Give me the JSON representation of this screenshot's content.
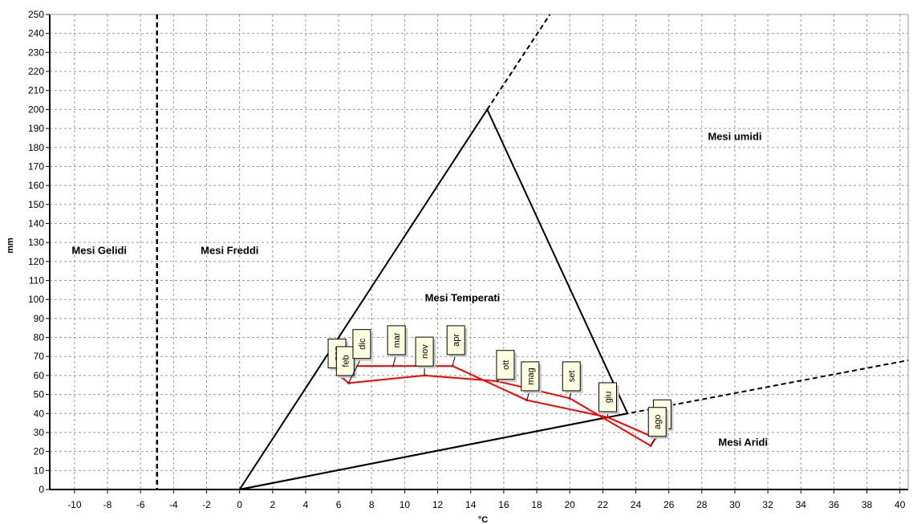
{
  "chart_data": {
    "type": "line",
    "title": "",
    "xlabel": "°C",
    "ylabel": "mm",
    "xlim": [
      -11.5,
      40.5
    ],
    "ylim": [
      0,
      250
    ],
    "x_ticks": [
      -10,
      -8,
      -6,
      -4,
      -2,
      0,
      2,
      4,
      6,
      8,
      10,
      12,
      14,
      16,
      18,
      20,
      22,
      24,
      26,
      28,
      30,
      32,
      34,
      36,
      38,
      40
    ],
    "y_ticks": [
      0,
      10,
      20,
      30,
      40,
      50,
      60,
      70,
      80,
      90,
      100,
      110,
      120,
      130,
      140,
      150,
      160,
      170,
      180,
      190,
      200,
      210,
      220,
      230,
      240,
      250
    ],
    "x_tick_labels": [
      "-10",
      "-8",
      "-6",
      "-4",
      "-2",
      "0",
      "2",
      "4",
      "6",
      "8",
      "10",
      "12",
      "14",
      "16",
      "18",
      "20",
      "22",
      "24",
      "26",
      "28",
      "30",
      "32",
      "34",
      "36",
      "38",
      "40"
    ],
    "y_tick_labels": [
      "0",
      "10",
      "20",
      "30",
      "40",
      "50",
      "60",
      "70",
      "80",
      "90",
      "100",
      "110",
      "120",
      "130",
      "140",
      "150",
      "160",
      "170",
      "180",
      "190",
      "200",
      "210",
      "220",
      "230",
      "240",
      "250"
    ],
    "grid": true,
    "frost_line_x": -5,
    "triangle": [
      [
        0,
        0
      ],
      [
        15,
        200
      ],
      [
        23.5,
        40
      ],
      [
        0,
        0
      ]
    ],
    "humid_line_extension": [
      [
        15,
        200
      ],
      [
        18.8,
        250
      ]
    ],
    "arid_line_extension": [
      [
        22.3,
        38
      ],
      [
        40.5,
        68
      ]
    ],
    "regions": [
      {
        "text": "Mesi Gelidi",
        "x": -8.5,
        "y": 124
      },
      {
        "text": "Mesi Freddi",
        "x": -0.6,
        "y": 124
      },
      {
        "text": "Mesi Temperati",
        "x": 13.5,
        "y": 99
      },
      {
        "text": "Mesi umidi",
        "x": 30,
        "y": 184
      },
      {
        "text": "Mesi Aridi",
        "x": 30.5,
        "y": 23
      }
    ],
    "series": [
      {
        "type": "climograph",
        "color": "#ff0000",
        "points": [
          {
            "month": "gen",
            "x": 6.2,
            "y": 59
          },
          {
            "month": "feb",
            "x": 6.8,
            "y": 65
          },
          {
            "month": "mar",
            "x": 9.3,
            "y": 65
          },
          {
            "month": "apr",
            "x": 12.9,
            "y": 65
          },
          {
            "month": "mag",
            "x": 17.4,
            "y": 47
          },
          {
            "month": "giu",
            "x": 22.3,
            "y": 38
          },
          {
            "month": "lug",
            "x": 25.2,
            "y": 27
          },
          {
            "month": "ago",
            "x": 24.9,
            "y": 23
          },
          {
            "month": "set",
            "x": 20.0,
            "y": 48
          },
          {
            "month": "ott",
            "x": 15.6,
            "y": 57
          },
          {
            "month": "nov",
            "x": 11.2,
            "y": 60
          },
          {
            "month": "dic",
            "x": 6.6,
            "y": 56
          }
        ]
      }
    ],
    "month_tags": [
      {
        "label": "gen",
        "x": 5.9,
        "y": 72
      },
      {
        "label": "feb",
        "x": 6.4,
        "y": 68
      },
      {
        "label": "dic",
        "x": 7.4,
        "y": 77
      },
      {
        "label": "mar",
        "x": 9.5,
        "y": 79
      },
      {
        "label": "nov",
        "x": 11.2,
        "y": 73
      },
      {
        "label": "apr",
        "x": 13.1,
        "y": 79
      },
      {
        "label": "ott",
        "x": 16.1,
        "y": 66
      },
      {
        "label": "mag",
        "x": 17.6,
        "y": 60
      },
      {
        "label": "set",
        "x": 20.1,
        "y": 60
      },
      {
        "label": "giu",
        "x": 22.3,
        "y": 49
      },
      {
        "label": "lug",
        "x": 25.6,
        "y": 40
      },
      {
        "label": "ago",
        "x": 25.3,
        "y": 36
      }
    ]
  }
}
